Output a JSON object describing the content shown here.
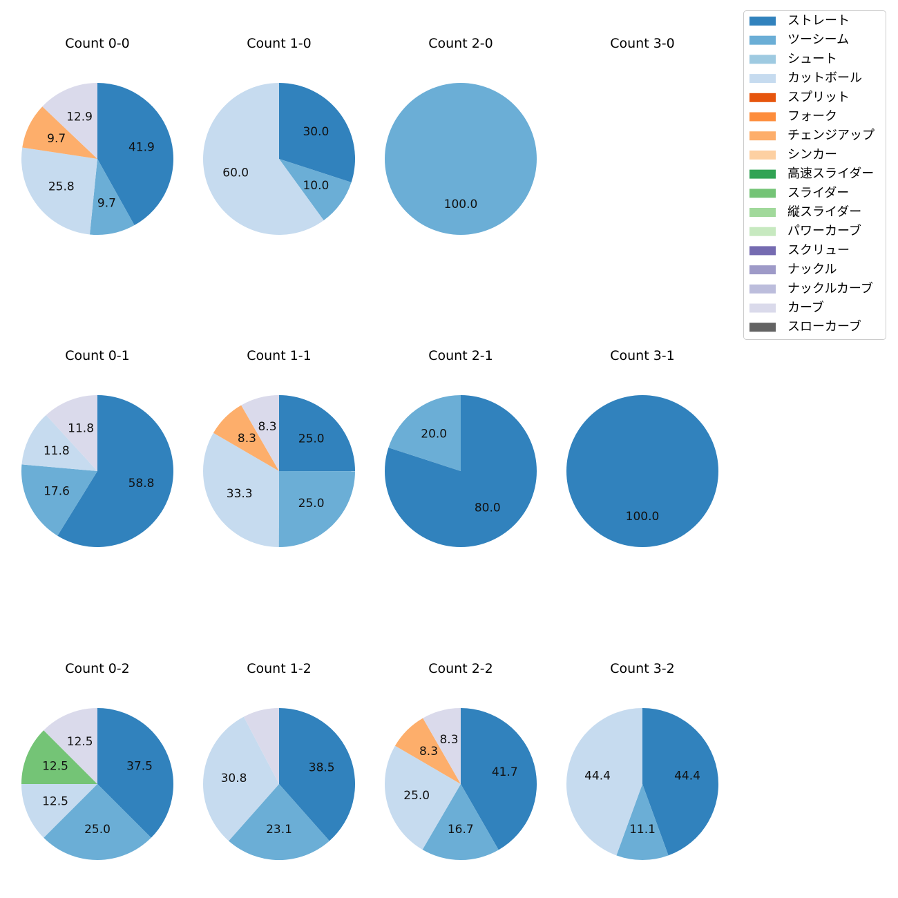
{
  "chart_data": {
    "type": "pie",
    "legend": {
      "position": "top-right",
      "entries": [
        {
          "name": "ストレート",
          "color": "#3182bd"
        },
        {
          "name": "ツーシーム",
          "color": "#6baed6"
        },
        {
          "name": "シュート",
          "color": "#9ecae1"
        },
        {
          "name": "カットボール",
          "color": "#c6dbef"
        },
        {
          "name": "スプリット",
          "color": "#e6550d"
        },
        {
          "name": "フォーク",
          "color": "#fd8d3c"
        },
        {
          "name": "チェンジアップ",
          "color": "#fdae6b"
        },
        {
          "name": "シンカー",
          "color": "#fdd0a2"
        },
        {
          "name": "高速スライダー",
          "color": "#31a354"
        },
        {
          "name": "スライダー",
          "color": "#74c476"
        },
        {
          "name": "縦スライダー",
          "color": "#a1d99b"
        },
        {
          "name": "パワーカーブ",
          "color": "#c7e9c0"
        },
        {
          "name": "スクリュー",
          "color": "#756bb1"
        },
        {
          "name": "ナックル",
          "color": "#9e9ac8"
        },
        {
          "name": "ナックルカーブ",
          "color": "#bcbddc"
        },
        {
          "name": "カーブ",
          "color": "#dadaeb"
        },
        {
          "name": "スローカーブ",
          "color": "#636363"
        }
      ]
    },
    "pies": [
      {
        "title": "Count 0-0",
        "slices": [
          {
            "pitch": "ストレート",
            "value": 41.9,
            "label": "41.9"
          },
          {
            "pitch": "ツーシーム",
            "value": 9.7,
            "label": "9.7"
          },
          {
            "pitch": "カットボール",
            "value": 25.8,
            "label": "25.8"
          },
          {
            "pitch": "チェンジアップ",
            "value": 9.7,
            "label": "9.7"
          },
          {
            "pitch": "カーブ",
            "value": 12.9,
            "label": "12.9"
          }
        ]
      },
      {
        "title": "Count 1-0",
        "slices": [
          {
            "pitch": "ストレート",
            "value": 30.0,
            "label": "30.0"
          },
          {
            "pitch": "ツーシーム",
            "value": 10.0,
            "label": "10.0"
          },
          {
            "pitch": "カットボール",
            "value": 60.0,
            "label": "60.0"
          }
        ]
      },
      {
        "title": "Count 2-0",
        "slices": [
          {
            "pitch": "ツーシーム",
            "value": 100.0,
            "label": "100.0"
          }
        ]
      },
      {
        "title": "Count 3-0",
        "slices": []
      },
      {
        "title": "Count 0-1",
        "slices": [
          {
            "pitch": "ストレート",
            "value": 58.8,
            "label": "58.8"
          },
          {
            "pitch": "ツーシーム",
            "value": 17.6,
            "label": "17.6"
          },
          {
            "pitch": "カットボール",
            "value": 11.8,
            "label": "11.8"
          },
          {
            "pitch": "カーブ",
            "value": 11.8,
            "label": "11.8"
          }
        ]
      },
      {
        "title": "Count 1-1",
        "slices": [
          {
            "pitch": "ストレート",
            "value": 25.0,
            "label": "25.0"
          },
          {
            "pitch": "ツーシーム",
            "value": 25.0,
            "label": "25.0"
          },
          {
            "pitch": "カットボール",
            "value": 33.3,
            "label": "33.3"
          },
          {
            "pitch": "チェンジアップ",
            "value": 8.3,
            "label": "8.3"
          },
          {
            "pitch": "カーブ",
            "value": 8.3,
            "label": "8.3"
          }
        ]
      },
      {
        "title": "Count 2-1",
        "slices": [
          {
            "pitch": "ストレート",
            "value": 80.0,
            "label": "80.0"
          },
          {
            "pitch": "ツーシーム",
            "value": 20.0,
            "label": "20.0"
          }
        ]
      },
      {
        "title": "Count 3-1",
        "slices": [
          {
            "pitch": "ストレート",
            "value": 100.0,
            "label": "100.0"
          }
        ]
      },
      {
        "title": "Count 0-2",
        "slices": [
          {
            "pitch": "ストレート",
            "value": 37.5,
            "label": "37.5"
          },
          {
            "pitch": "ツーシーム",
            "value": 25.0,
            "label": "25.0"
          },
          {
            "pitch": "カットボール",
            "value": 12.5,
            "label": "12.5"
          },
          {
            "pitch": "スライダー",
            "value": 12.5,
            "label": "12.5"
          },
          {
            "pitch": "カーブ",
            "value": 12.5,
            "label": "12.5"
          }
        ]
      },
      {
        "title": "Count 1-2",
        "slices": [
          {
            "pitch": "ストレート",
            "value": 38.5,
            "label": "38.5"
          },
          {
            "pitch": "ツーシーム",
            "value": 23.1,
            "label": "23.1"
          },
          {
            "pitch": "カットボール",
            "value": 30.8,
            "label": "30.8"
          },
          {
            "pitch": "カーブ",
            "value": 7.7,
            "label": ""
          }
        ]
      },
      {
        "title": "Count 2-2",
        "slices": [
          {
            "pitch": "ストレート",
            "value": 41.7,
            "label": "41.7"
          },
          {
            "pitch": "ツーシーム",
            "value": 16.7,
            "label": "16.7"
          },
          {
            "pitch": "カットボール",
            "value": 25.0,
            "label": "25.0"
          },
          {
            "pitch": "チェンジアップ",
            "value": 8.3,
            "label": "8.3"
          },
          {
            "pitch": "カーブ",
            "value": 8.3,
            "label": "8.3"
          }
        ]
      },
      {
        "title": "Count 3-2",
        "slices": [
          {
            "pitch": "ストレート",
            "value": 44.4,
            "label": "44.4"
          },
          {
            "pitch": "ツーシーム",
            "value": 11.1,
            "label": "11.1"
          },
          {
            "pitch": "カットボール",
            "value": 44.4,
            "label": "44.4"
          }
        ]
      }
    ]
  }
}
